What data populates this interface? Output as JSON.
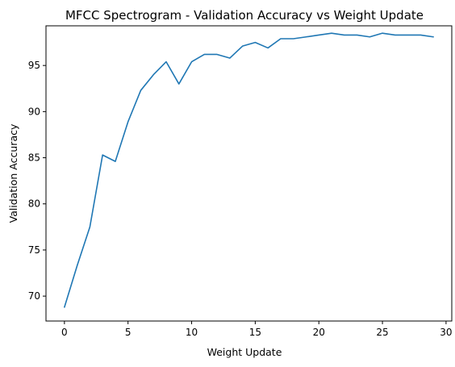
{
  "chart_data": {
    "type": "line",
    "title": "MFCC Spectrogram - Validation Accuracy vs Weight Update",
    "xlabel": "Weight Update",
    "ylabel": "Validation Accuracy",
    "xlim": [
      -1.45,
      30.45
    ],
    "ylim": [
      67.3,
      99.3
    ],
    "xticks": [
      0,
      5,
      10,
      15,
      20,
      25,
      30
    ],
    "yticks": [
      70,
      75,
      80,
      85,
      90,
      95
    ],
    "grid": false,
    "legend": "none",
    "series": [
      {
        "color": "#1f77b4",
        "x": [
          0,
          1,
          2,
          3,
          4,
          5,
          6,
          7,
          8,
          9,
          10,
          11,
          12,
          13,
          14,
          15,
          16,
          17,
          18,
          19,
          20,
          21,
          22,
          23,
          24,
          25,
          26,
          27,
          28,
          29
        ],
        "y": [
          68.8,
          73.3,
          77.5,
          85.3,
          84.6,
          88.9,
          92.3,
          94.0,
          95.4,
          93.0,
          95.4,
          96.2,
          96.2,
          95.8,
          97.1,
          97.5,
          96.9,
          97.9,
          97.9,
          98.1,
          98.3,
          98.5,
          98.3,
          98.3,
          98.1,
          98.5,
          98.3,
          98.3,
          98.3,
          98.1
        ]
      }
    ]
  }
}
